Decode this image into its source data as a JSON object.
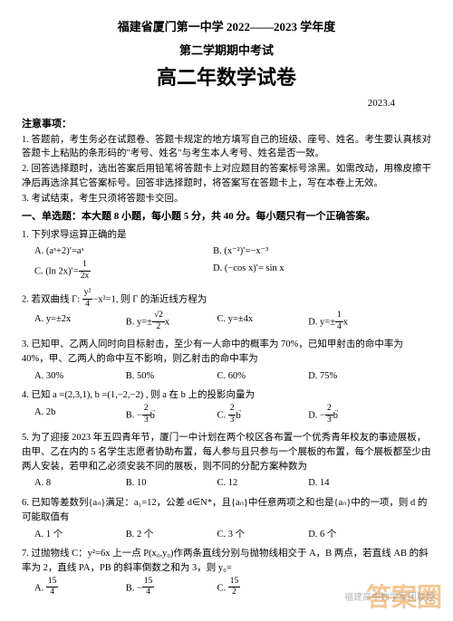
{
  "header": {
    "line1": "福建省厦门第一中学 2022——2023 学年度",
    "line2": "第二学期期中考试",
    "title": "高二年数学试卷",
    "date": "2023.4"
  },
  "notice": {
    "title": "注意事项：",
    "items": [
      "1. 答题前，考生务必在试题卷、答题卡规定的地方填写自己的班级、座号、姓名。考生要认真核对答题卡上粘贴的条形码的\"考号、姓名\"与考生本人考号、姓名是否一致。",
      "2. 回答选择题时，选出答案后用铅笔将答题卡上对应题目的答案标号涂黑。如需改动，用橡皮擦干净后再选涂其它答案标号。回答非选择题时，将答案写在答题卡上，写在本卷上无效。",
      "3. 考试结束，考生只须将答题卡交回。"
    ]
  },
  "section1": {
    "title": "一、单选题：本大题 8 小题，每小题 5 分，共 40 分。每小题只有一个正确答案。"
  },
  "q1": {
    "stem": "1. 下列求导运算正确的是",
    "A": "A. (aˣ+2)′=aˣ",
    "B": "B. (x⁻²)′=−x⁻³",
    "C_pre": "C. (ln 2x)′=",
    "D": "D. (−cos x)′= sin x"
  },
  "q2": {
    "stem_pre": "2. 若双曲线 Γ: ",
    "stem_post": "−x²=1, 则 Γ 的渐近线方程为",
    "A": "A. y=±2x",
    "B_pre": "B. y=±",
    "B_post": "x",
    "C": "C. y=±4x",
    "D_pre": "D. y=±",
    "D_post": "x"
  },
  "q3": {
    "stem": "3. 已知甲、乙两人同时向目标射击，至少有一人命中的概率为 70%，已知甲射击的命中率为 40%，甲、乙两人的命中互不影响，则乙射击的命中率为",
    "A": "A. 30%",
    "B": "B. 50%",
    "C": "C. 60%",
    "D": "D. 75%"
  },
  "q4": {
    "stem": "4. 已知 a =(2,3,1), b =(1,−2,−2) , 则 a 在 b 上的投影向量为",
    "A": "A. 2b",
    "B_pre": "B. −",
    "C_pre": "C. ",
    "D_pre": "D. −"
  },
  "q5": {
    "stem": "5. 为了迎接 2023 年五四青年节，厦门一中计划在两个校区各布置一个优秀青年校友的事迹展板，由甲、乙在内的 5 名学生志愿者协助布置，每人参与且只参与一个展板的布置，每个展板都至少由两人安装，若甲和乙必须安装不同的展板，则不同的分配方案种数为",
    "A": "A. 8",
    "B": "B. 10",
    "C": "C. 12",
    "D": "D. 14"
  },
  "q6": {
    "stem": "6. 已知等差数列{aₙ}满足：a₁=12，公差 d∈N*，且{aₙ}中任意两项之和也是{aₙ}中的一项，则 d 的可能取值有",
    "A": "A. 1 个",
    "B": "B. 2 个",
    "C": "C. 3 个",
    "D": "D. 6 个"
  },
  "q7": {
    "stem": "7. 过抛物线 C：y²=6x 上一点 P(x₀,y₀)作两条直线分别与抛物线相交于 A，B 两点，若直线 AB 的斜率为 2，直线 PA，PB 的斜率倒数之和为 3，则 y₀=",
    "A_pre": "A. ",
    "B_pre": "B. −",
    "C_pre": "C. "
  },
  "watermark": "答案圈",
  "watermark2": "福建高中数学军团联题"
}
